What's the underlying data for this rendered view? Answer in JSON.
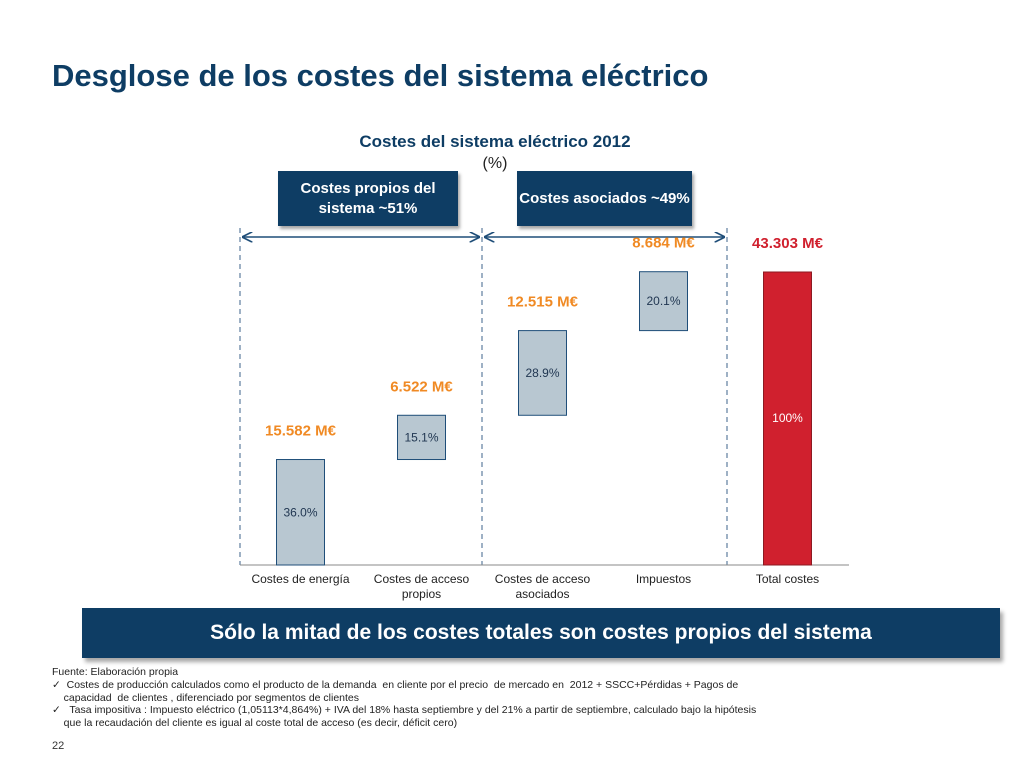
{
  "page": {
    "title": "Desglose de los costes del sistema eléctrico",
    "page_number": "22"
  },
  "groups": {
    "own": "Costes propios del sistema ~51%",
    "associated": "Costes asociados ~49%"
  },
  "conclusion": "Sólo la mitad de los costes totales son costes propios del sistema",
  "footnotes": [
    "Fuente: Elaboración propia",
    "✓  Costes de producción calculados como el producto de la demanda  en cliente por el precio  de mercado en  2012 + SSCC+Pérdidas + Pagos de",
    "    capacidad  de clientes , diferenciado por segmentos de clientes",
    "✓   Tasa impositiva : Impuesto eléctrico (1,05113*4,864%) + IVA del 18% hasta septiembre y del 21% a partir de septiembre, calculado bajo la hipótesis",
    "    que la recaudación del cliente es igual al coste total de acceso (es decir, déficit cero)"
  ],
  "chart_data": {
    "type": "bar",
    "subtype": "waterfall",
    "title": "Costes del sistema eléctrico 2012",
    "unit": "(%)",
    "categories": [
      "Costes de energía",
      "Costes de acceso propios",
      "Costes de acceso asociados",
      "Impuestos",
      "Total costes"
    ],
    "category_lines": [
      [
        "Costes de energía"
      ],
      [
        "Costes de acceso",
        "propios"
      ],
      [
        "Costes de acceso",
        "asociados"
      ],
      [
        "Impuestos"
      ],
      [
        "Total costes"
      ]
    ],
    "values": [
      36.0,
      15.1,
      28.9,
      20.1,
      100
    ],
    "value_labels": [
      "36.0%",
      "15.1%",
      "28.9%",
      "20.1%",
      "100%"
    ],
    "amount_labels": [
      "15.582 M€",
      "6.522 M€",
      "12.515 M€",
      "8.684 M€",
      "43.303 M€"
    ],
    "is_total": [
      false,
      false,
      false,
      false,
      true
    ],
    "ylim": [
      0,
      100
    ],
    "colors": {
      "bar": "#b8c7d1",
      "bar_border": "#1f4e79",
      "total": "#d0202e",
      "amount_label": "#f08a24",
      "total_amount_label": "#d0202e",
      "bar_label": "#1f3550",
      "total_bar_label": "#ffffff",
      "divider": "#7f97b2",
      "arrow": "#1f4e79"
    }
  }
}
